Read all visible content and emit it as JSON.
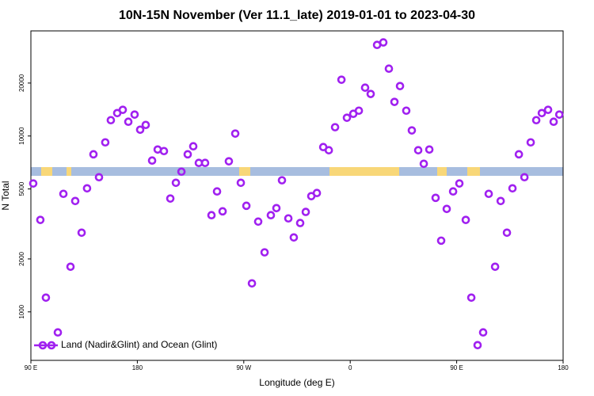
{
  "chart_data": {
    "type": "scatter",
    "title": "10N-15N November (Ver 11.1_late)   2019-01-01 to 2023-04-30",
    "xlabel": "Longitude (deg E)",
    "ylabel": "N Total",
    "log_y": true,
    "legend": "bottom-left",
    "xlim": [
      90,
      540
    ],
    "ylim": [
      530,
      39600
    ],
    "xticks": [
      {
        "value": 90,
        "label": "90 E"
      },
      180,
      {
        "value": 270,
        "label": "90 W"
      },
      {
        "value": 360,
        "label": "0"
      },
      {
        "value": 450,
        "label": "90 E"
      },
      {
        "value": 540,
        "label": "180"
      }
    ],
    "yticks": [
      1000,
      2000,
      5000,
      10000,
      20000
    ],
    "series": [
      {
        "name": "Land (Nadir&Glint) and Ocean (Glint)",
        "color": "#a020f0",
        "x": [
          92.0,
          98.0,
          102.7,
          112.8,
          117.5,
          123.5,
          127.5,
          132.9,
          137.5,
          142.9,
          147.6,
          152.9,
          157.6,
          163.0,
          167.7,
          172.4,
          177.7,
          182.4,
          187.1,
          192.5,
          197.2,
          202.5,
          207.9,
          212.6,
          217.3,
          222.6,
          227.3,
          232.0,
          237.3,
          242.7,
          247.4,
          252.1,
          257.4,
          262.8,
          267.5,
          272.2,
          276.9,
          282.2,
          287.6,
          292.9,
          297.6,
          302.3,
          307.7,
          312.3,
          317.7,
          322.4,
          327.1,
          331.8,
          337.2,
          341.9,
          347.2,
          352.6,
          357.2,
          362.6,
          367.3,
          372.6,
          377.3,
          382.7,
          388.0,
          392.7,
          397.4,
          402.1,
          407.4,
          412.1,
          417.5,
          422.2,
          426.9,
          432.2,
          436.9,
          441.6,
          447.0,
          452.3,
          457.7,
          462.4,
          467.7,
          472.4,
          477.1,
          482.5,
          487.2,
          492.5,
          497.2,
          502.6,
          507.3,
          512.6,
          517.3,
          522.0,
          527.3,
          532.0,
          536.8
        ],
        "values": [
          5370,
          3333,
          1205,
          764,
          4690,
          1806,
          4270,
          2820,
          5040,
          7870,
          5830,
          9200,
          12300,
          13500,
          14090,
          12050,
          13240,
          10860,
          11560,
          7250,
          8380,
          8210,
          4410,
          5420,
          6270,
          7870,
          8740,
          7030,
          7030,
          3545,
          4840,
          3730,
          7180,
          10320,
          5420,
          4010,
          1452,
          3260,
          2180,
          3545,
          3890,
          5600,
          3400,
          2650,
          3200,
          3700,
          4550,
          4740,
          8650,
          8300,
          11220,
          20890,
          12700,
          13370,
          13930,
          18830,
          17340,
          32960,
          34040,
          24150,
          15630,
          19230,
          13930,
          10760,
          8300,
          6950,
          8380,
          4450,
          2540,
          3850,
          4840,
          5370,
          3333,
          1205,
          647,
          764,
          4690,
          1806,
          4270,
          2820,
          5040,
          7870,
          5830,
          9200,
          12300,
          13500,
          14090,
          12050,
          13240
        ]
      }
    ]
  }
}
